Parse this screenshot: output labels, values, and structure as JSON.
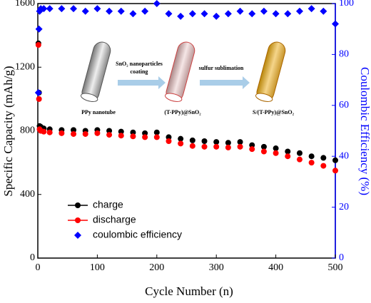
{
  "chart_data": {
    "type": "scatter",
    "x_label": "Cycle Number (n)",
    "y_label": "Specific Capacity (mAh/g)",
    "y2_label": "Coulombic Efficiency (%)",
    "x": [
      1,
      2,
      3,
      5,
      10,
      20,
      40,
      60,
      80,
      100,
      120,
      140,
      160,
      180,
      200,
      220,
      240,
      260,
      280,
      300,
      320,
      340,
      360,
      380,
      400,
      420,
      440,
      460,
      480,
      500
    ],
    "series": [
      {
        "name": "charge",
        "color": "#000000",
        "marker": "circle",
        "values": [
          1350,
          1040,
          830,
          825,
          815,
          810,
          805,
          805,
          800,
          805,
          800,
          795,
          790,
          785,
          790,
          760,
          750,
          740,
          735,
          730,
          725,
          730,
          710,
          700,
          690,
          670,
          660,
          640,
          630,
          615
        ]
      },
      {
        "name": "discharge",
        "color": "#ff0000",
        "marker": "circle",
        "values": [
          1340,
          1000,
          810,
          800,
          795,
          790,
          785,
          780,
          780,
          785,
          775,
          770,
          765,
          760,
          760,
          735,
          720,
          705,
          700,
          700,
          695,
          700,
          685,
          670,
          660,
          640,
          620,
          600,
          580,
          550
        ]
      },
      {
        "name": "coulombic efficiency",
        "color": "#0000ff",
        "marker": "diamond",
        "axis": "y2",
        "values": [
          65,
          90,
          97,
          98,
          98,
          98,
          98,
          98,
          97,
          98,
          97,
          97,
          96,
          97,
          100,
          96,
          95,
          96,
          96,
          95,
          96,
          97,
          96,
          97,
          96,
          96,
          97,
          98,
          97,
          92
        ]
      }
    ],
    "xlim": [
      0,
      500
    ],
    "xticks": [
      0,
      100,
      200,
      300,
      400,
      500
    ],
    "ylim": [
      0,
      1600
    ],
    "yticks": [
      0,
      400,
      800,
      1200,
      1600
    ],
    "y2lim": [
      0,
      100
    ],
    "y2ticks": [
      0,
      20,
      40,
      60,
      80,
      100
    ],
    "y2_color": "#0000ff",
    "annotations": [
      "SnO₂ nanoparticles",
      "coating",
      "sulfur sublimation",
      "PPy nanotube",
      "(T-PPy)@SnO₂",
      "S/(T-PPy)@SnO₂"
    ]
  }
}
